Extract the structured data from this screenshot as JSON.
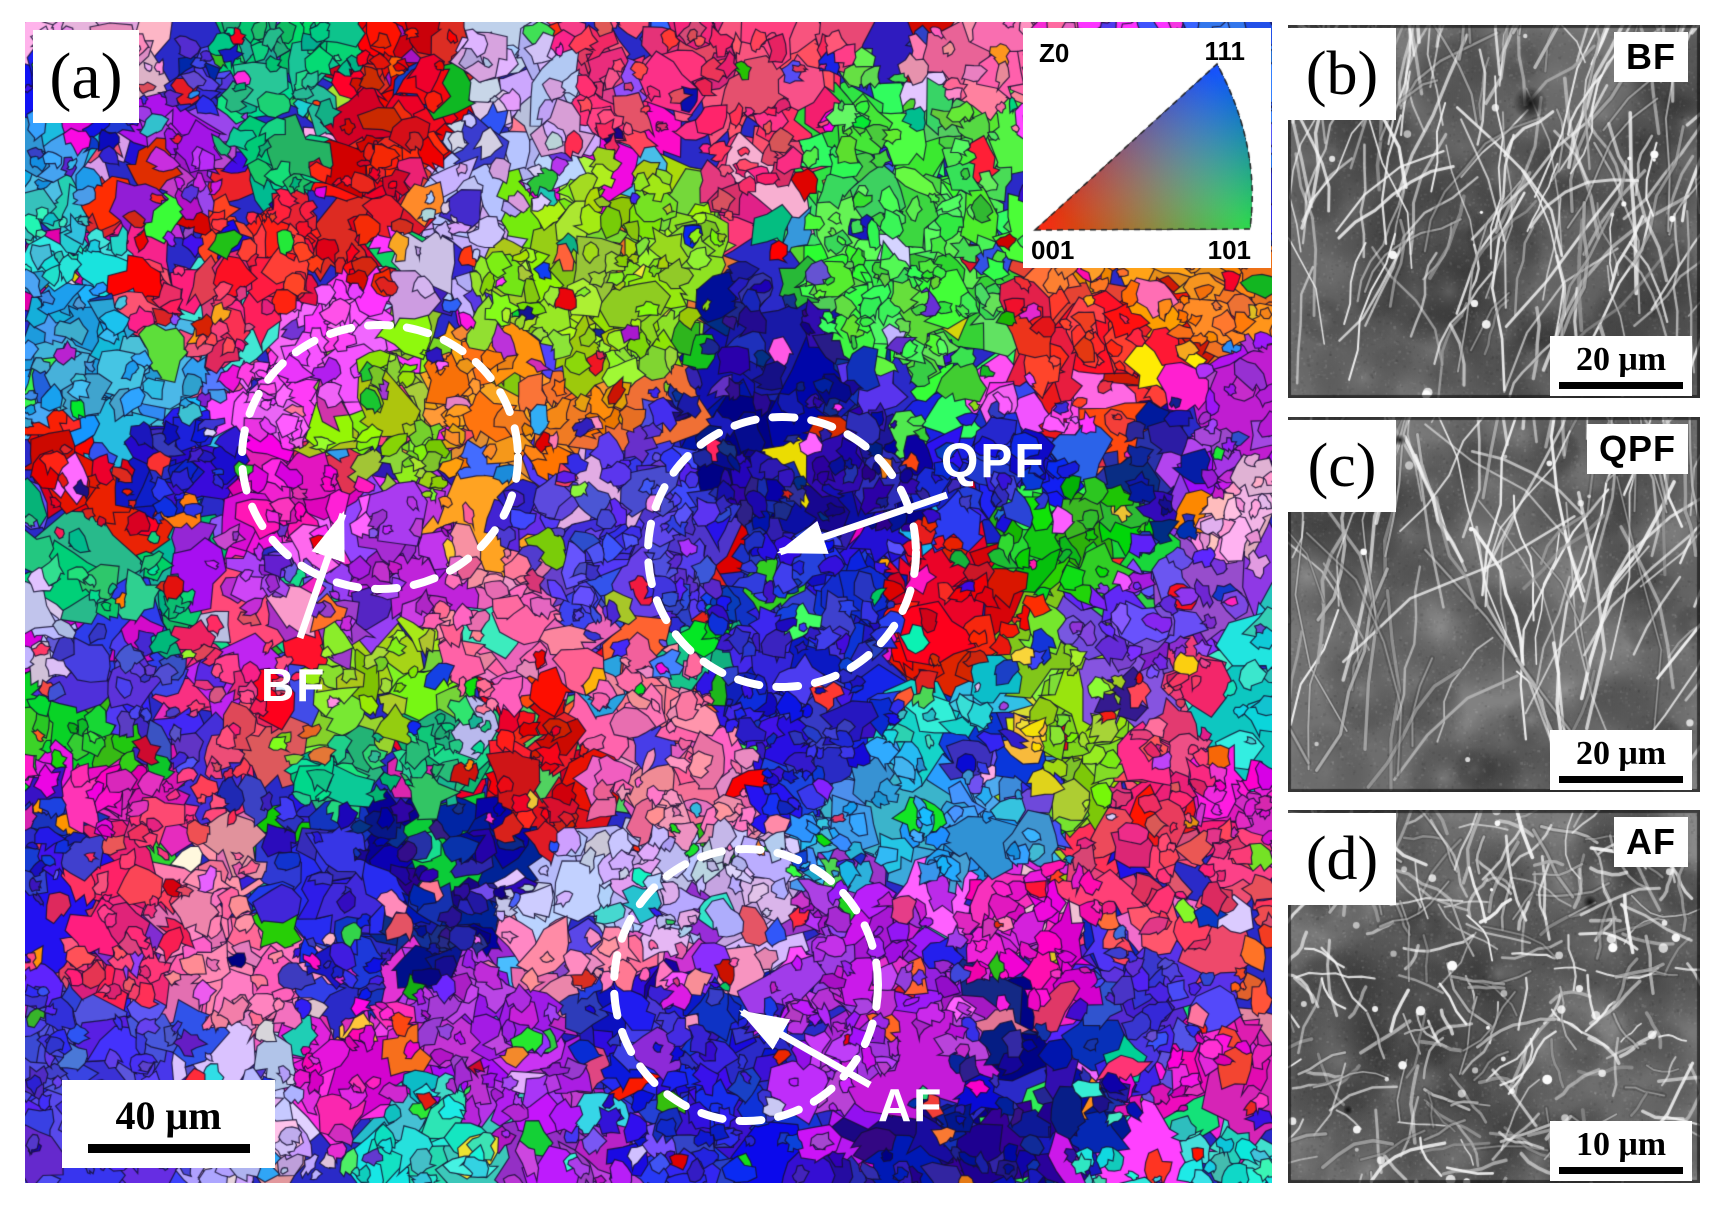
{
  "panel_a": {
    "label": "(a)",
    "scale_bar_text": "40 μm",
    "regions": [
      {
        "label": "BF"
      },
      {
        "label": "QPF"
      },
      {
        "label": "AF"
      }
    ],
    "ipf_key": {
      "axis_label": "Z0",
      "corner_111": "111",
      "corner_001": "001",
      "corner_101": "101"
    }
  },
  "panel_b": {
    "label": "(b)",
    "tag": "BF",
    "scale_bar_text": "20 μm"
  },
  "panel_c": {
    "label": "(c)",
    "tag": "QPF",
    "scale_bar_text": "20 μm"
  },
  "panel_d": {
    "label": "(d)",
    "tag": "AF",
    "scale_bar_text": "10 μm"
  },
  "colors": {
    "ipf_001": "#ff1212",
    "ipf_101": "#12d412",
    "ipf_111": "#1212ff",
    "annotation": "#ffffff",
    "scale_bar": "#000000",
    "label_bg": "#ffffff",
    "sem_base_b": "#7a7a7a",
    "sem_base_c": "#818181",
    "sem_base_d": "#898989"
  }
}
